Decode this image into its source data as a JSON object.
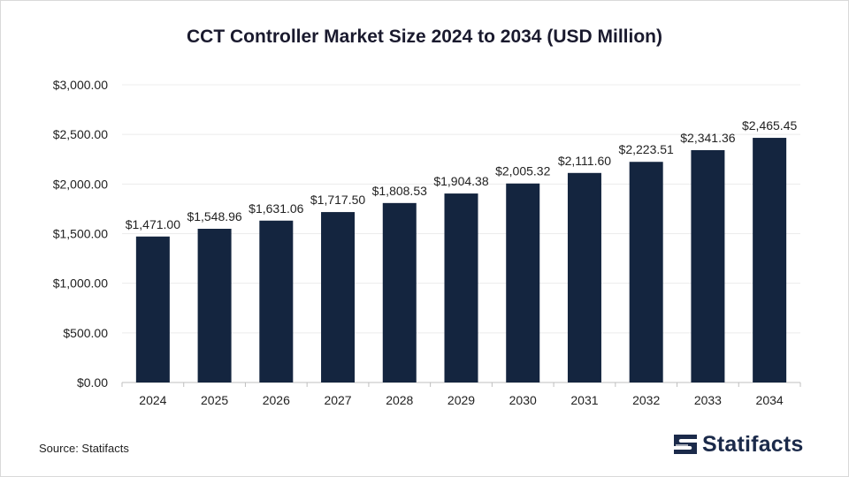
{
  "chart_data": {
    "type": "bar",
    "title": "CCT Controller Market Size 2024 to 2034 (USD Million)",
    "categories": [
      "2024",
      "2025",
      "2026",
      "2027",
      "2028",
      "2029",
      "2030",
      "2031",
      "2032",
      "2033",
      "2034"
    ],
    "values": [
      1471.0,
      1548.96,
      1631.06,
      1717.5,
      1808.53,
      1904.38,
      2005.32,
      2111.6,
      2223.51,
      2341.36,
      2465.45
    ],
    "data_labels": [
      "$1,471.00",
      "$1,548.96",
      "$1,631.06",
      "$1,717.50",
      "$1,808.53",
      "$1,904.38",
      "$2,005.32",
      "$2,111.60",
      "$2,223.51",
      "$2,341.36",
      "$2,465.45"
    ],
    "y_ticks": [
      0,
      500,
      1000,
      1500,
      2000,
      2500,
      3000
    ],
    "y_tick_labels": [
      "$0.00",
      "$500.00",
      "$1,000.00",
      "$1,500.00",
      "$2,000.00",
      "$2,500.00",
      "$3,000.00"
    ],
    "ylim": [
      0,
      3000
    ],
    "xlabel": "",
    "ylabel": "",
    "grid": true,
    "bar_color": "#14253f"
  },
  "footer": {
    "source": "Source: Statifacts",
    "brand": "Statifacts",
    "brand_icon": "statifacts-logo-icon"
  }
}
